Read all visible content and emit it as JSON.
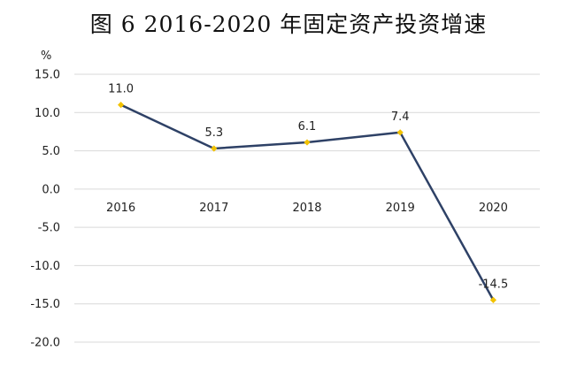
{
  "title": "图 6 2016-2020 年固定资产投资增速",
  "colors": {
    "line": "#2e4166",
    "marker": "#f2c200",
    "grid": "#d9d9d9"
  },
  "chart_data": {
    "type": "line",
    "title": "图 6 2016-2020 年固定资产投资增速",
    "ylabel": "%",
    "xlabel": "",
    "categories": [
      "2016",
      "2017",
      "2018",
      "2019",
      "2020"
    ],
    "series": [
      {
        "values": [
          11.0,
          5.3,
          6.1,
          7.4,
          -14.5
        ],
        "labels": [
          "11.0",
          "5.3",
          "6.1",
          "7.4",
          "-14.5"
        ]
      }
    ],
    "yticks": [
      15.0,
      10.0,
      5.0,
      0.0,
      -5.0,
      -10.0,
      -15.0,
      -20.0
    ],
    "ytick_labels": [
      "15.0",
      "10.0",
      "5.0",
      "0.0",
      "-5.0",
      "-10.0",
      "-15.0",
      "-20.0"
    ],
    "ylim": [
      -20.0,
      15.0
    ],
    "grid": true,
    "legend": "none",
    "category_axis_position": "at zero, labels below zero line"
  }
}
